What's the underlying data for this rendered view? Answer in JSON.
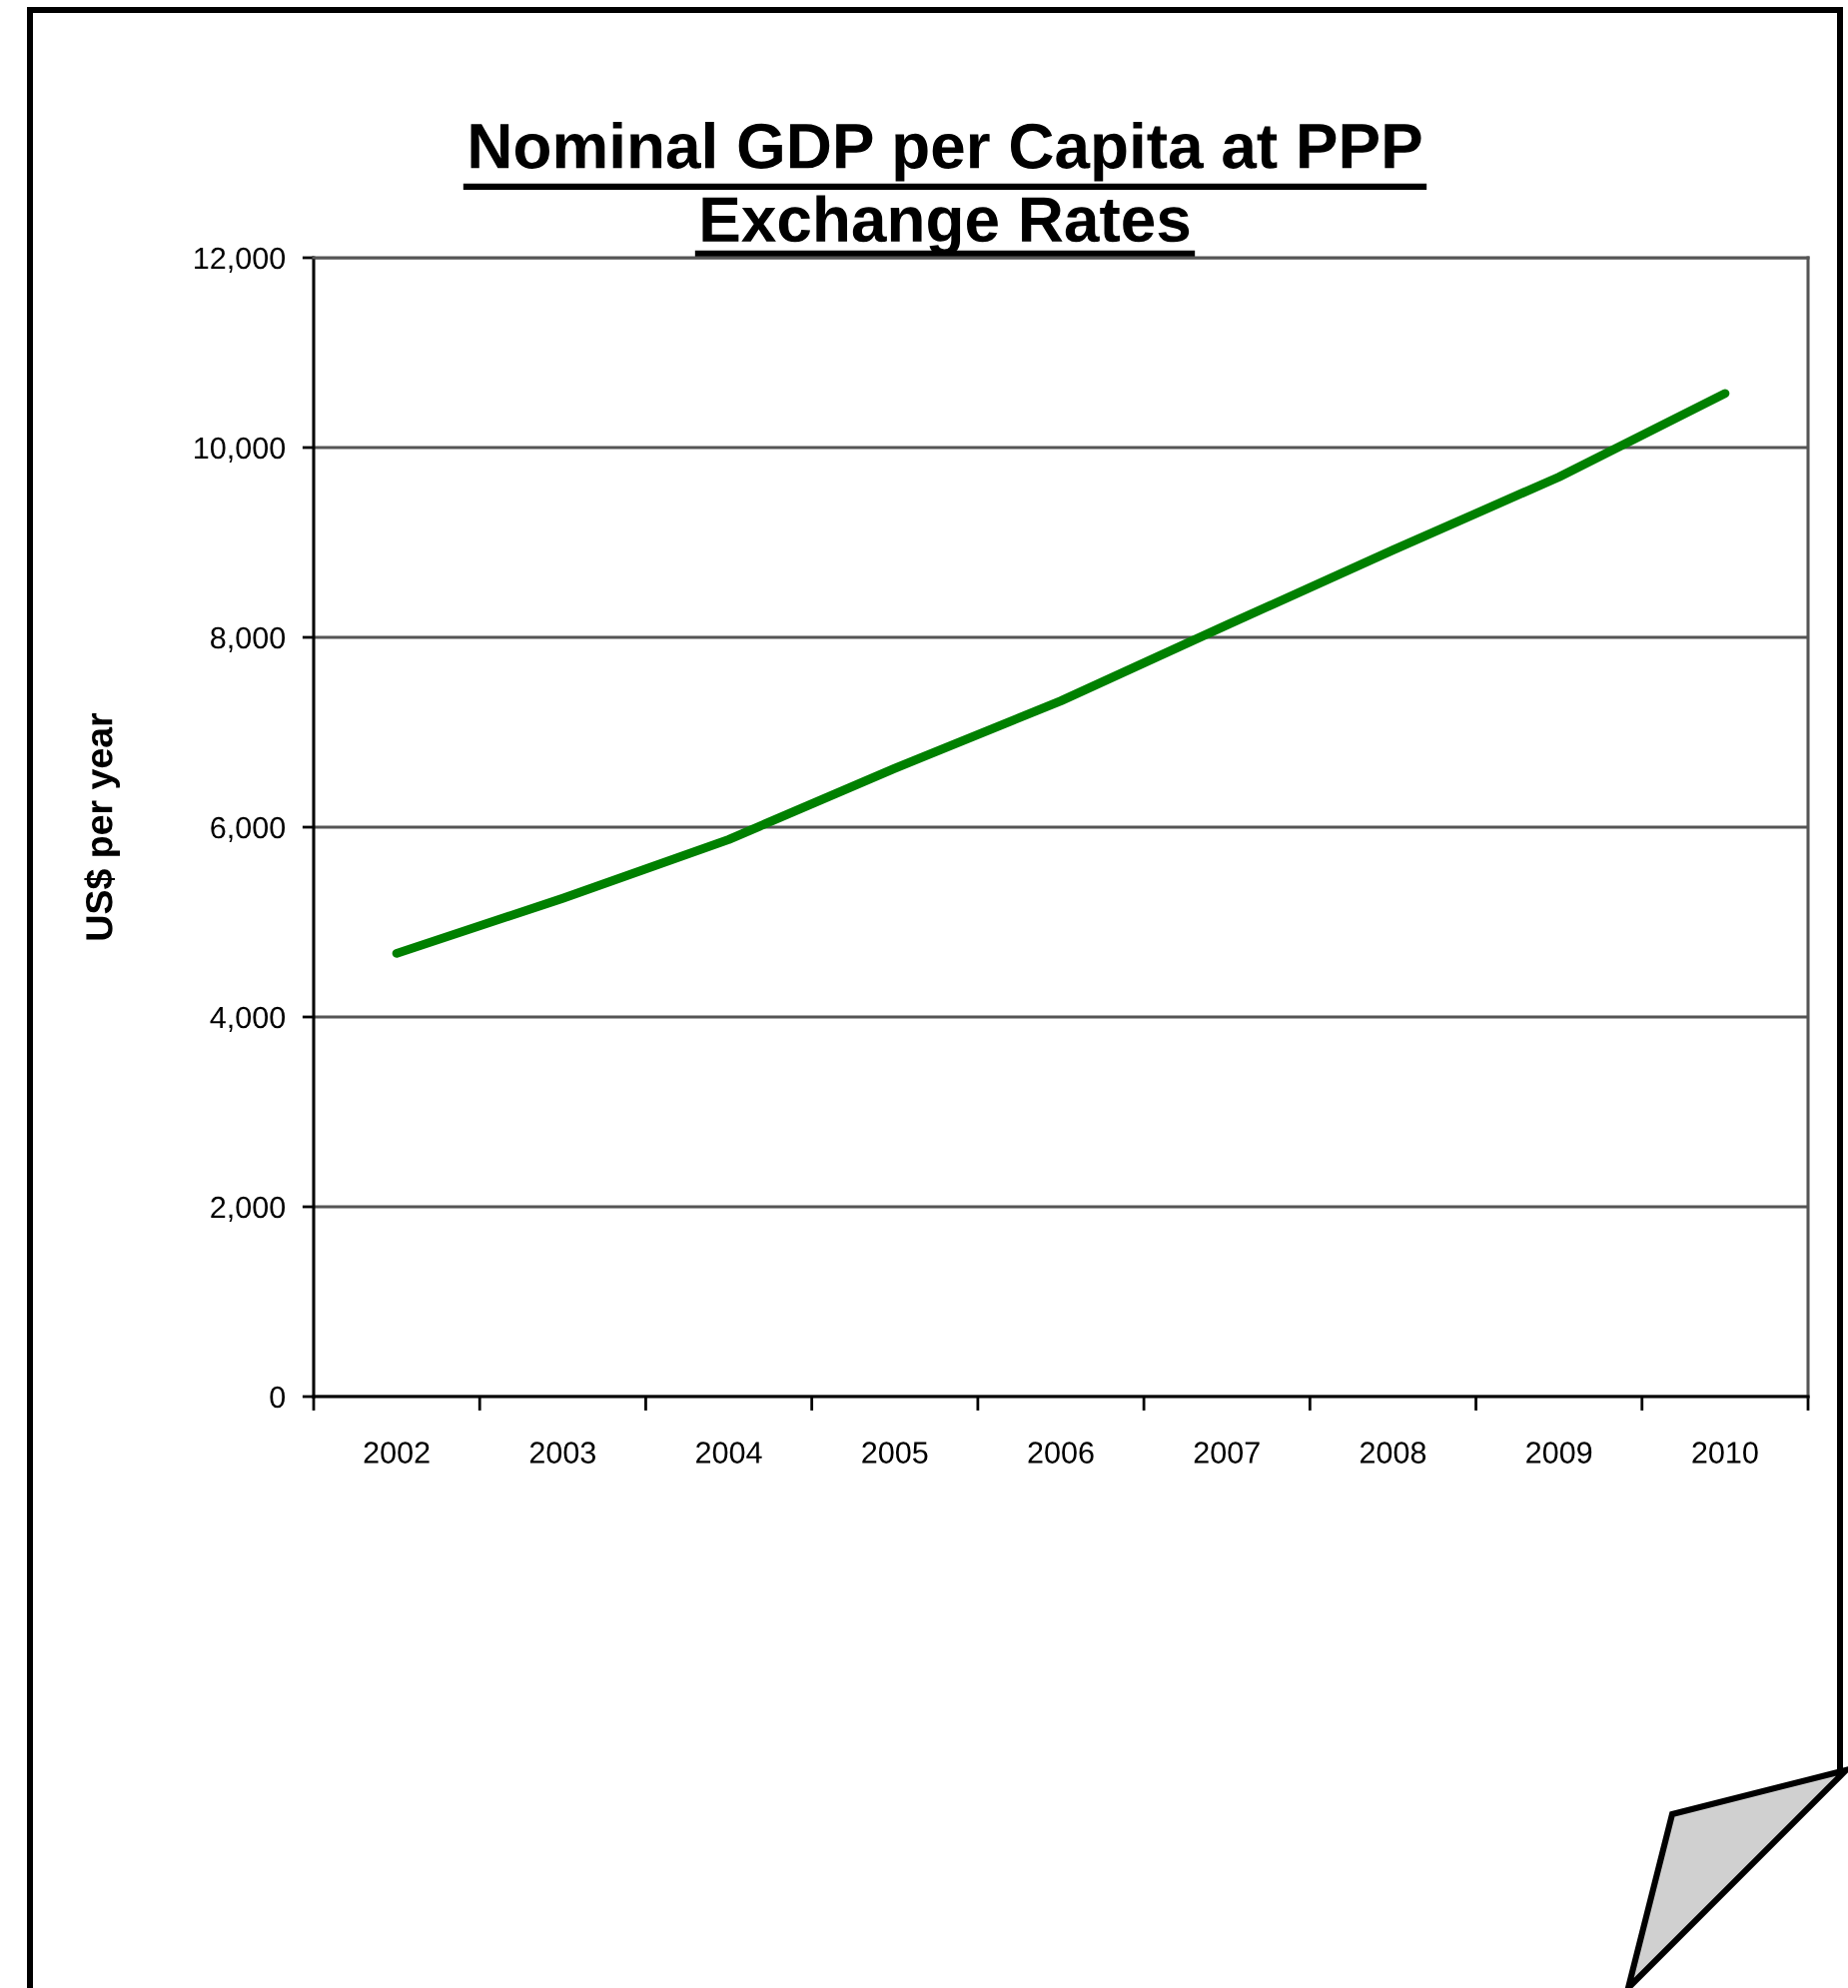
{
  "chart_data": {
    "type": "line",
    "title": "Nominal GDP per Capita at PPP Exchange Rates",
    "ylabel": "US$ per year",
    "categories": [
      "2002",
      "2003",
      "2004",
      "2005",
      "2006",
      "2007",
      "2008",
      "2009",
      "2010"
    ],
    "series": [
      {
        "color": "#008000",
        "values": [
          4670,
          5250,
          5870,
          6620,
          7330,
          8130,
          8920,
          9690,
          10570
        ]
      }
    ],
    "ylim": [
      0,
      12000
    ],
    "yticks": [
      0,
      {
        "value": 2000,
        "label": "2,000"
      },
      {
        "value": 4000,
        "label": "4,000"
      },
      {
        "value": 6000,
        "label": "6,000"
      },
      {
        "value": 8000,
        "label": "8,000"
      },
      {
        "value": 10000,
        "label": "10,000"
      },
      {
        "value": 12000,
        "label": "12,000"
      }
    ],
    "grid": "y",
    "line_style": "solid"
  }
}
